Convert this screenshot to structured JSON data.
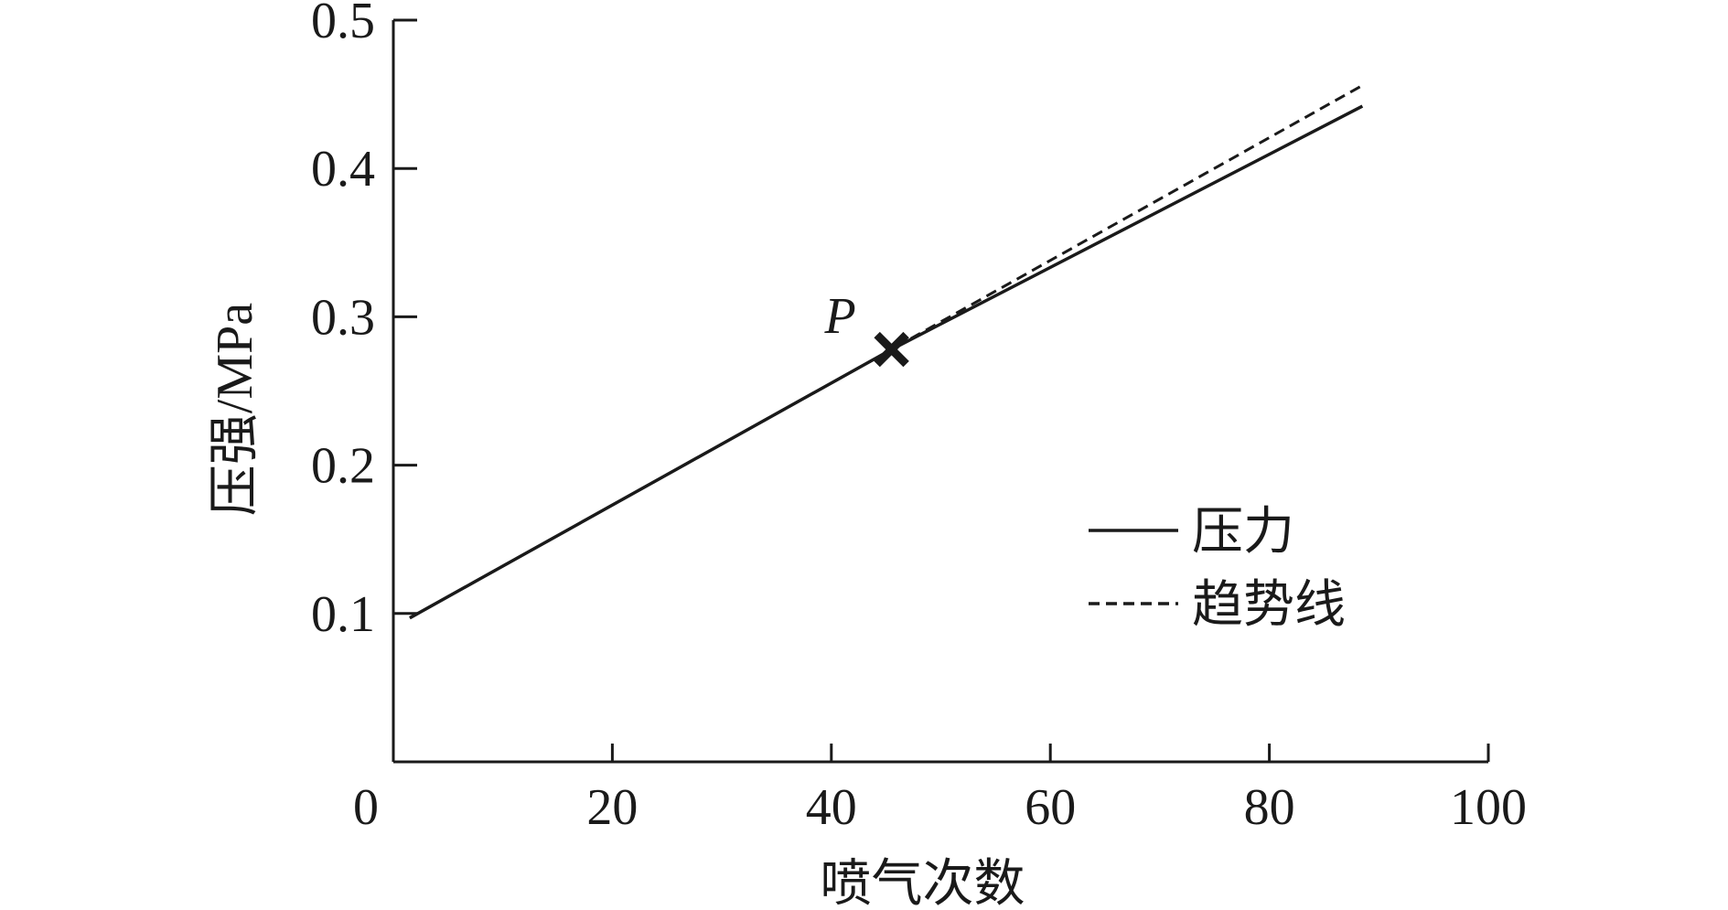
{
  "chart_data": {
    "type": "line",
    "title": "",
    "xlabel": "喷气次数",
    "ylabel": "压强/MPa",
    "xlim": [
      0,
      100
    ],
    "ylim": [
      0,
      0.5
    ],
    "x_ticks": [
      0,
      20,
      40,
      60,
      80,
      100
    ],
    "x_tick_labels": [
      "0",
      "20",
      "40",
      "60",
      "80",
      "100"
    ],
    "y_ticks": [
      0.1,
      0.2,
      0.3,
      0.4,
      0.5
    ],
    "y_tick_labels": [
      "0.1",
      "0.2",
      "0.3",
      "0.4",
      "0.5"
    ],
    "grid": false,
    "legend_position": "right",
    "series": [
      {
        "name": "压力",
        "style": "solid",
        "color": "#1a1a1a",
        "x": [
          1.5,
          45.5,
          88.5
        ],
        "y": [
          0.097,
          0.278,
          0.442
        ]
      },
      {
        "name": "趋势线",
        "style": "dashed",
        "color": "#1a1a1a",
        "x": [
          1.5,
          45.5,
          88.5
        ],
        "y": [
          0.097,
          0.278,
          0.456
        ]
      }
    ],
    "annotations": [
      {
        "label": "P",
        "marker": "x",
        "x": 45.5,
        "y": 0.278
      }
    ]
  }
}
